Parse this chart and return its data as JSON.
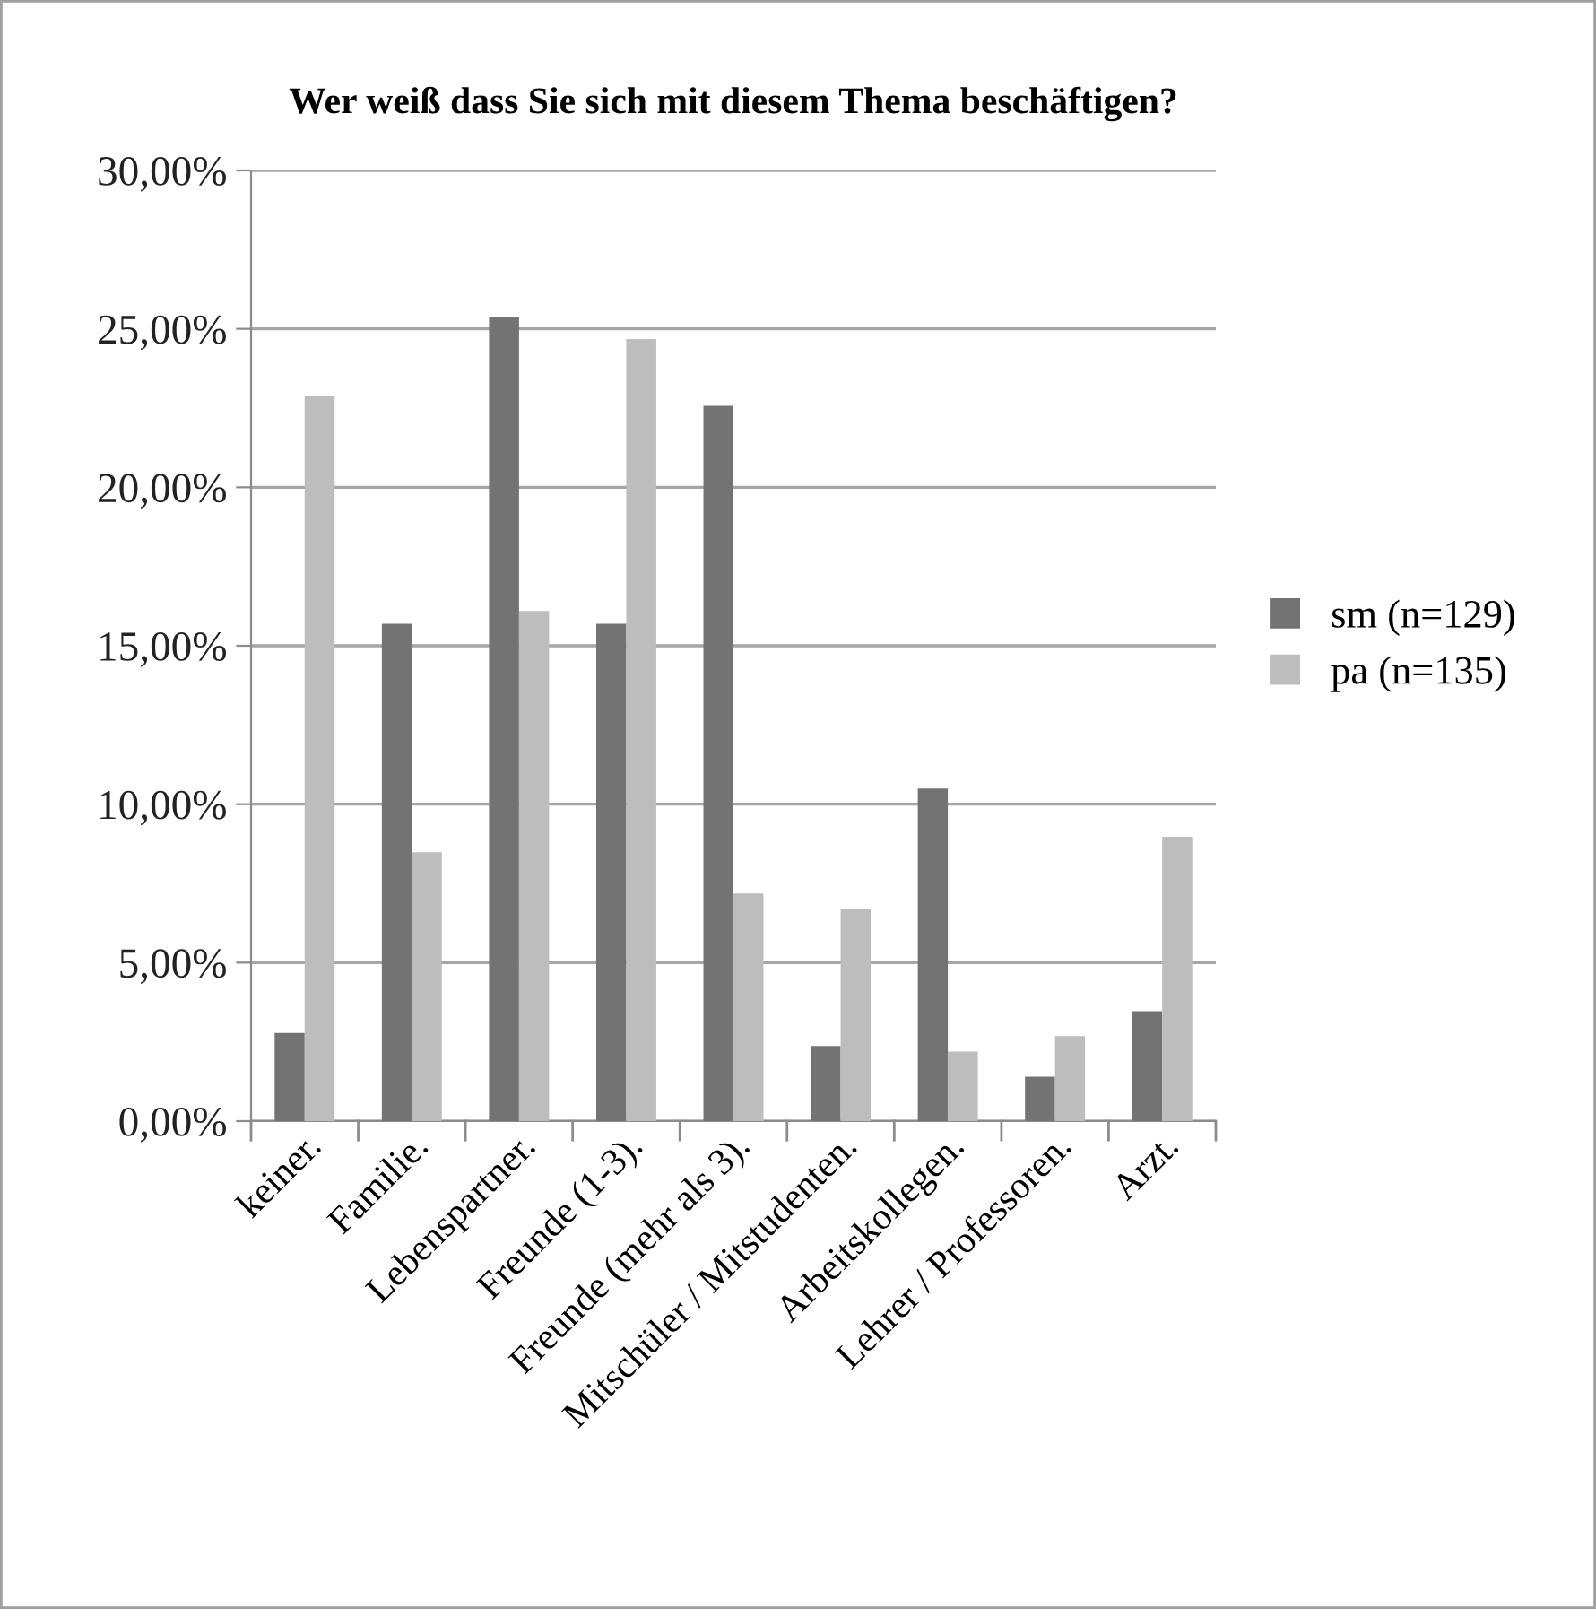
{
  "chart_data": {
    "type": "bar",
    "title": "Wer weiß dass Sie sich mit diesem Thema beschäftigen?",
    "categories": [
      "keiner.",
      "Familie.",
      "Lebenspartner.",
      "Freunde (1-3).",
      "Freunde (mehr als 3).",
      "Mitschüler / Mitstudenten.",
      "Arbeitskollegen.",
      "Lehrer / Professoren.",
      "Arzt."
    ],
    "series": [
      {
        "name": "sm (n=129)",
        "color": "#737373",
        "values": [
          2.78,
          15.69,
          25.37,
          15.69,
          22.57,
          2.37,
          10.49,
          1.4,
          3.47
        ]
      },
      {
        "name": "pa (n=135)",
        "color": "#bdbdbd",
        "values": [
          22.87,
          8.48,
          16.1,
          24.68,
          7.18,
          6.68,
          2.19,
          2.68,
          8.97
        ]
      }
    ],
    "ylim": [
      0,
      30
    ],
    "yticks": [
      {
        "value": 0,
        "label": "0,00%"
      },
      {
        "value": 5,
        "label": "5,00%"
      },
      {
        "value": 10,
        "label": "10,00%"
      },
      {
        "value": 15,
        "label": "15,00%"
      },
      {
        "value": 20,
        "label": "20,00%"
      },
      {
        "value": 25,
        "label": "25,00%"
      },
      {
        "value": 30,
        "label": "30,00%"
      }
    ],
    "grid": "y",
    "legend": "right"
  }
}
